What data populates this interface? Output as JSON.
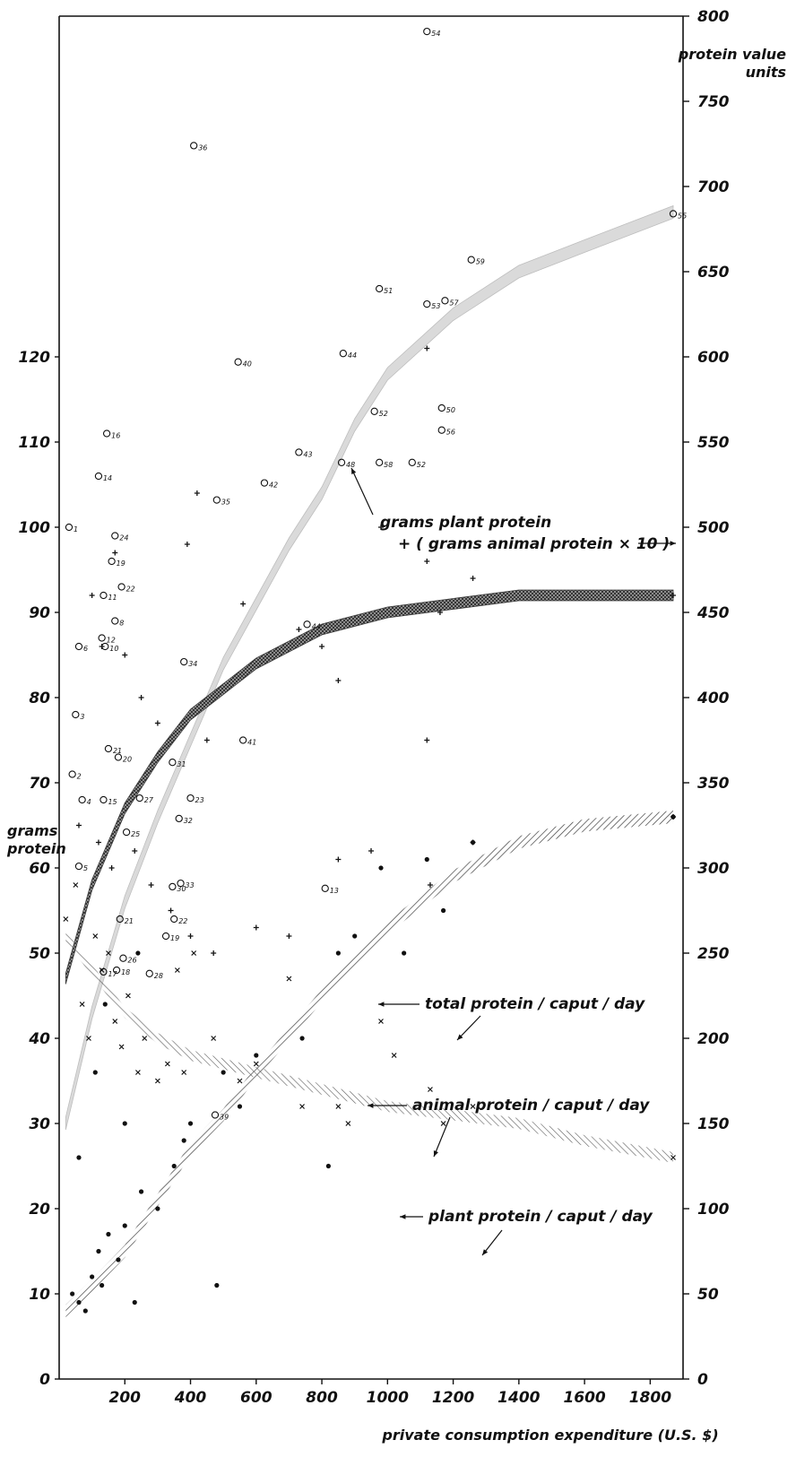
{
  "chart_data": {
    "type": "scatter",
    "xlabel": "private consumption expenditure (U.S. $)",
    "ylabel_left": [
      "grams",
      "protein"
    ],
    "ylabel_right": [
      "protein value",
      "units"
    ],
    "xlim": [
      0,
      1900
    ],
    "ylim_left": [
      0,
      160
    ],
    "ylim_right": [
      0,
      800
    ],
    "xticks": [
      200,
      400,
      600,
      800,
      1000,
      1200,
      1400,
      1600,
      1800
    ],
    "xtick_labels": [
      "200",
      "400",
      "600",
      "800",
      "1000",
      "1200",
      "1400",
      "1600",
      "1800"
    ],
    "yticks_left": [
      0,
      10,
      20,
      30,
      40,
      50,
      60,
      70,
      80,
      90,
      100,
      110,
      120
    ],
    "ytick_labels_left": [
      "0",
      "10",
      "20",
      "30",
      "40",
      "50",
      "60",
      "70",
      "80",
      "90",
      "100",
      "110",
      "120"
    ],
    "yticks_right": [
      0,
      50,
      100,
      150,
      200,
      250,
      300,
      350,
      400,
      450,
      500,
      550,
      600,
      650,
      700,
      750,
      800
    ],
    "ytick_labels_right": [
      "0",
      "50",
      "100",
      "150",
      "200",
      "250",
      "300",
      "350",
      "400",
      "450",
      "500",
      "550",
      "600",
      "650",
      "700",
      "750",
      "800"
    ],
    "grid": false,
    "annotations": [
      {
        "text": "grams plant protein",
        "series": "protein_value"
      },
      {
        "text": "+ ( grams animal protein × 10 )",
        "series": "protein_value"
      },
      {
        "text": "total protein / caput / day",
        "series": "total_protein"
      },
      {
        "text": "animal protein / caput / day",
        "series": "animal_protein"
      },
      {
        "text": "plant protein / caput / day",
        "series": "plant_protein"
      }
    ],
    "trend_curves": [
      {
        "id": "protein_value",
        "axis": "right",
        "x": [
          20,
          100,
          200,
          300,
          400,
          500,
          600,
          700,
          800,
          900,
          1000,
          1200,
          1400,
          1600,
          1870
        ],
        "y": [
          150,
          215,
          280,
          330,
          375,
          420,
          455,
          490,
          520,
          560,
          590,
          625,
          650,
          665,
          685
        ]
      },
      {
        "id": "total_protein",
        "axis": "left",
        "x": [
          20,
          100,
          200,
          300,
          400,
          500,
          600,
          800,
          1000,
          1200,
          1400,
          1600,
          1870
        ],
        "y": [
          47,
          58,
          67,
          73,
          78,
          81,
          84,
          88,
          90,
          91,
          92,
          92,
          92
        ]
      },
      {
        "id": "animal_protein",
        "axis": "left",
        "x": [
          20,
          100,
          200,
          300,
          400,
          500,
          600,
          800,
          1000,
          1200,
          1400,
          1600,
          1870
        ],
        "y": [
          8,
          11,
          15,
          21,
          27,
          31,
          36,
          45,
          53,
          59,
          63,
          65,
          66
        ]
      },
      {
        "id": "plant_protein",
        "axis": "left",
        "x": [
          20,
          100,
          200,
          300,
          400,
          500,
          600,
          800,
          1000,
          1200,
          1400,
          1600,
          1870
        ],
        "y": [
          52,
          48,
          43,
          40,
          38,
          37,
          36,
          34,
          32,
          31,
          30,
          28,
          26
        ]
      }
    ],
    "protein_value_points": [
      {
        "x": 1120,
        "y": 791,
        "label": "54"
      },
      {
        "x": 410,
        "y": 724,
        "label": "36"
      },
      {
        "x": 1255,
        "y": 657,
        "label": "59"
      },
      {
        "x": 975,
        "y": 640,
        "label": "51"
      },
      {
        "x": 1120,
        "y": 631,
        "label": "53"
      },
      {
        "x": 1175,
        "y": 633,
        "label": "57"
      },
      {
        "x": 1870,
        "y": 684,
        "label": "55"
      },
      {
        "x": 545,
        "y": 597,
        "label": "40"
      },
      {
        "x": 865,
        "y": 602,
        "label": "44"
      },
      {
        "x": 960,
        "y": 568,
        "label": "52"
      },
      {
        "x": 1165,
        "y": 570,
        "label": "50"
      },
      {
        "x": 1165,
        "y": 557,
        "label": "56"
      },
      {
        "x": 730,
        "y": 544,
        "label": "43"
      },
      {
        "x": 975,
        "y": 538,
        "label": "58"
      },
      {
        "x": 1075,
        "y": 538,
        "label": "52"
      },
      {
        "x": 860,
        "y": 538,
        "label": "48"
      },
      {
        "x": 625,
        "y": 526,
        "label": "42"
      },
      {
        "x": 480,
        "y": 516,
        "label": "35"
      },
      {
        "x": 755,
        "y": 443,
        "label": "44"
      },
      {
        "x": 380,
        "y": 421,
        "label": "34"
      },
      {
        "x": 560,
        "y": 375,
        "label": "41"
      },
      {
        "x": 345,
        "y": 362,
        "label": "31"
      },
      {
        "x": 135,
        "y": 340,
        "label": "15"
      },
      {
        "x": 245,
        "y": 341,
        "label": "27"
      },
      {
        "x": 400,
        "y": 341,
        "label": "23"
      },
      {
        "x": 365,
        "y": 329,
        "label": "32"
      },
      {
        "x": 205,
        "y": 321,
        "label": "25"
      },
      {
        "x": 60,
        "y": 301,
        "label": "5"
      },
      {
        "x": 345,
        "y": 289,
        "label": "30"
      },
      {
        "x": 370,
        "y": 291,
        "label": "33"
      },
      {
        "x": 810,
        "y": 288,
        "label": "13"
      },
      {
        "x": 185,
        "y": 270,
        "label": "21"
      },
      {
        "x": 350,
        "y": 270,
        "label": "22"
      },
      {
        "x": 325,
        "y": 260,
        "label": "19"
      },
      {
        "x": 195,
        "y": 247,
        "label": "26"
      },
      {
        "x": 275,
        "y": 238,
        "label": "28"
      },
      {
        "x": 135,
        "y": 239,
        "label": "17"
      },
      {
        "x": 175,
        "y": 240,
        "label": "18"
      },
      {
        "x": 475,
        "y": 155,
        "label": "39"
      }
    ],
    "grams_protein_points": [
      {
        "x": 30,
        "y": 100,
        "label": "1"
      },
      {
        "x": 120,
        "y": 106,
        "label": "14"
      },
      {
        "x": 145,
        "y": 111,
        "label": "16"
      },
      {
        "x": 170,
        "y": 99,
        "label": "24"
      },
      {
        "x": 190,
        "y": 93,
        "label": "22"
      },
      {
        "x": 160,
        "y": 96,
        "label": "19"
      },
      {
        "x": 135,
        "y": 92,
        "label": "11"
      },
      {
        "x": 170,
        "y": 89,
        "label": "8"
      },
      {
        "x": 130,
        "y": 87,
        "label": "12"
      },
      {
        "x": 140,
        "y": 86,
        "label": "10"
      },
      {
        "x": 60,
        "y": 86,
        "label": "6"
      },
      {
        "x": 50,
        "y": 78,
        "label": "3"
      },
      {
        "x": 40,
        "y": 71,
        "label": "2"
      },
      {
        "x": 70,
        "y": 68,
        "label": "4"
      },
      {
        "x": 150,
        "y": 74,
        "label": "21"
      },
      {
        "x": 180,
        "y": 73,
        "label": "20"
      }
    ],
    "total_points": [
      [
        1120,
        121
      ],
      [
        420,
        104
      ],
      [
        980,
        100
      ],
      [
        1120,
        96
      ],
      [
        390,
        98
      ],
      [
        560,
        91
      ],
      [
        1160,
        90
      ],
      [
        170,
        97
      ],
      [
        850,
        82
      ],
      [
        100,
        92
      ],
      [
        130,
        86
      ],
      [
        200,
        85
      ],
      [
        250,
        80
      ],
      [
        300,
        77
      ],
      [
        450,
        75
      ],
      [
        730,
        88
      ],
      [
        800,
        86
      ],
      [
        1120,
        75
      ],
      [
        1260,
        94
      ],
      [
        1870,
        92
      ],
      [
        60,
        65
      ],
      [
        120,
        63
      ],
      [
        160,
        60
      ],
      [
        230,
        62
      ],
      [
        280,
        58
      ],
      [
        340,
        55
      ],
      [
        400,
        52
      ],
      [
        470,
        50
      ],
      [
        600,
        53
      ],
      [
        700,
        52
      ],
      [
        850,
        61
      ],
      [
        950,
        62
      ],
      [
        1130,
        58
      ],
      [
        1260,
        63
      ],
      [
        1870,
        66
      ]
    ],
    "animal_points": [
      [
        40,
        10
      ],
      [
        60,
        9
      ],
      [
        80,
        8
      ],
      [
        100,
        12
      ],
      [
        120,
        15
      ],
      [
        130,
        11
      ],
      [
        150,
        17
      ],
      [
        180,
        14
      ],
      [
        200,
        18
      ],
      [
        230,
        9
      ],
      [
        250,
        22
      ],
      [
        300,
        20
      ],
      [
        350,
        25
      ],
      [
        380,
        28
      ],
      [
        400,
        30
      ],
      [
        480,
        11
      ],
      [
        500,
        36
      ],
      [
        550,
        32
      ],
      [
        600,
        38
      ],
      [
        740,
        40
      ],
      [
        820,
        25
      ],
      [
        850,
        50
      ],
      [
        900,
        52
      ],
      [
        980,
        60
      ],
      [
        1050,
        50
      ],
      [
        1120,
        61
      ],
      [
        1170,
        55
      ],
      [
        1260,
        63
      ],
      [
        1870,
        66
      ],
      [
        60,
        26
      ],
      [
        110,
        36
      ],
      [
        140,
        44
      ],
      [
        200,
        30
      ],
      [
        240,
        50
      ]
    ],
    "plant_points": [
      [
        20,
        54
      ],
      [
        50,
        58
      ],
      [
        70,
        44
      ],
      [
        90,
        40
      ],
      [
        110,
        52
      ],
      [
        130,
        48
      ],
      [
        150,
        50
      ],
      [
        170,
        42
      ],
      [
        190,
        39
      ],
      [
        210,
        45
      ],
      [
        240,
        36
      ],
      [
        260,
        40
      ],
      [
        300,
        35
      ],
      [
        330,
        37
      ],
      [
        360,
        48
      ],
      [
        380,
        36
      ],
      [
        410,
        50
      ],
      [
        470,
        40
      ],
      [
        550,
        35
      ],
      [
        600,
        37
      ],
      [
        700,
        47
      ],
      [
        740,
        32
      ],
      [
        850,
        32
      ],
      [
        880,
        30
      ],
      [
        980,
        42
      ],
      [
        1020,
        38
      ],
      [
        1130,
        34
      ],
      [
        1170,
        30
      ],
      [
        1260,
        32
      ],
      [
        1870,
        26
      ]
    ]
  }
}
